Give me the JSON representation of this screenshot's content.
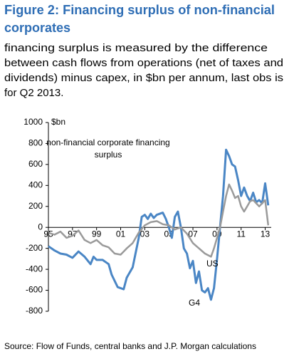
{
  "chart_data": {
    "type": "line",
    "title": [
      "Figure 2: Financing surplus of non-financial",
      "corporates"
    ],
    "subtitle": [
      "financing surplus is measured by the difference",
      "between cash flows from operations (net of taxes and",
      "dividends) minus capex, in $bn per annum, last obs is",
      "for Q2 2013."
    ],
    "y_unit": "$bn",
    "annotation": [
      "non-financial corporate financing",
      "surplus"
    ],
    "source": "Source: Flow of Funds, central banks and J.P. Morgan calculations",
    "xlim": [
      1995,
      2013.5
    ],
    "xticks": [
      {
        "value": 1995,
        "label": "95"
      },
      {
        "value": 1997,
        "label": "97"
      },
      {
        "value": 1999,
        "label": "99"
      },
      {
        "value": 2001,
        "label": "01"
      },
      {
        "value": 2003,
        "label": "03"
      },
      {
        "value": 2005,
        "label": "05"
      },
      {
        "value": 2007,
        "label": "07"
      },
      {
        "value": 2009,
        "label": "09"
      },
      {
        "value": 2011,
        "label": "11"
      },
      {
        "value": 2013,
        "label": "13"
      }
    ],
    "ylim": [
      -800,
      1000
    ],
    "yticks": [
      -800,
      -600,
      -400,
      -200,
      0,
      200,
      400,
      600,
      800,
      1000
    ],
    "series": [
      {
        "name": "G4",
        "color": "#4a86c5",
        "x": [
          1995,
          1995.5,
          1996,
          1996.5,
          1997,
          1997.5,
          1998,
          1998.5,
          1998.75,
          1999,
          1999.5,
          2000,
          2000.25,
          2000.75,
          2001.25,
          2001.5,
          2002,
          2002.5,
          2002.75,
          2003,
          2003.25,
          2003.5,
          2003.75,
          2004,
          2004.5,
          2004.75,
          2005,
          2005.25,
          2005.5,
          2005.75,
          2006,
          2006.25,
          2006.5,
          2006.75,
          2007,
          2007.25,
          2007.5,
          2007.75,
          2008,
          2008.25,
          2008.5,
          2008.75,
          2009,
          2009.25,
          2009.5,
          2009.75,
          2010,
          2010.25,
          2010.5,
          2010.75,
          2011,
          2011.25,
          2011.5,
          2011.75,
          2012,
          2012.25,
          2012.5,
          2012.75,
          2013,
          2013.25
        ],
        "values": [
          -180,
          -220,
          -250,
          -260,
          -290,
          -230,
          -280,
          -350,
          -280,
          -310,
          -310,
          -350,
          -450,
          -570,
          -590,
          -480,
          -380,
          -100,
          100,
          120,
          80,
          130,
          90,
          120,
          140,
          80,
          0,
          -100,
          100,
          150,
          0,
          -200,
          -250,
          -390,
          -320,
          -530,
          -420,
          -600,
          -620,
          -580,
          -690,
          -580,
          -300,
          0,
          300,
          740,
          680,
          600,
          580,
          450,
          300,
          380,
          300,
          250,
          330,
          240,
          260,
          230,
          420,
          210
        ]
      },
      {
        "name": "US",
        "color": "#9a9a9a",
        "x": [
          1995,
          1995.5,
          1996,
          1996.5,
          1997,
          1997.5,
          1998,
          1998.5,
          1999,
          1999.5,
          2000,
          2000.5,
          2001,
          2001.5,
          2002,
          2002.5,
          2003,
          2003.5,
          2004,
          2004.5,
          2005,
          2005.5,
          2006,
          2006.5,
          2007,
          2007.5,
          2008,
          2008.5,
          2008.75,
          2009,
          2009.25,
          2009.5,
          2009.75,
          2010,
          2010.25,
          2010.5,
          2010.75,
          2011,
          2011.25,
          2011.5,
          2011.75,
          2012,
          2012.5,
          2013,
          2013.25
        ],
        "values": [
          -50,
          -70,
          -40,
          -100,
          -80,
          -30,
          -120,
          -150,
          -120,
          -170,
          -190,
          -250,
          -260,
          -200,
          -150,
          -50,
          20,
          50,
          60,
          30,
          20,
          -20,
          0,
          -60,
          -150,
          -200,
          -250,
          -280,
          -200,
          -100,
          0,
          150,
          300,
          410,
          350,
          280,
          300,
          200,
          150,
          200,
          250,
          260,
          200,
          260,
          20
        ]
      }
    ]
  }
}
